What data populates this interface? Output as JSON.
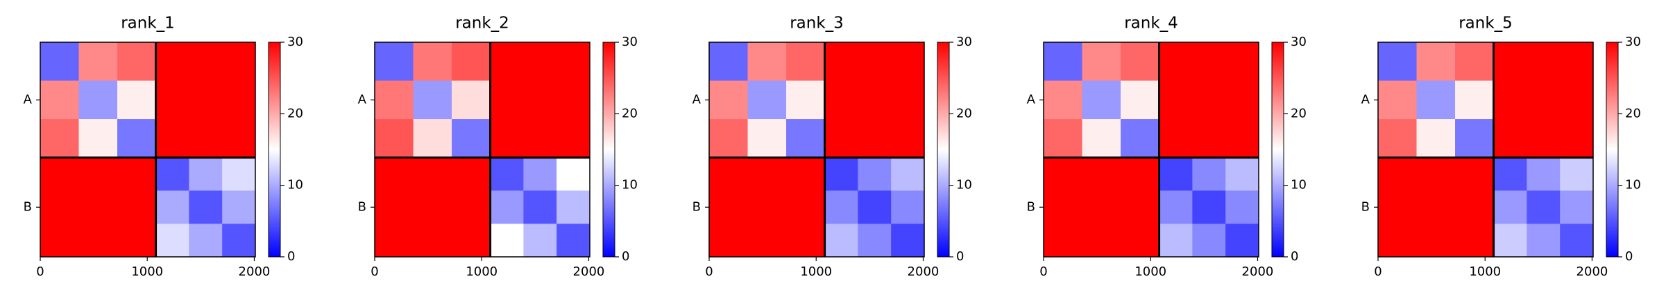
{
  "chart_data": [
    {
      "type": "heatmap",
      "title": "rank_1",
      "bins": [
        0,
        360,
        720,
        1080,
        1390,
        1700,
        2010
      ],
      "xlim": [
        0,
        2010
      ],
      "ylim": [
        2010,
        0
      ],
      "xticks": [
        0,
        1000,
        2000
      ],
      "yticks": [
        {
          "value": 540,
          "label": "A"
        },
        {
          "value": 1545,
          "label": "B"
        }
      ],
      "chain_breaks": [
        1080
      ],
      "clim": [
        0,
        30
      ],
      "cticks": [
        0,
        10,
        20,
        30
      ],
      "cmap": [
        "#0000ff",
        "#ffffff",
        "#ff0000"
      ],
      "values": [
        [
          6,
          22,
          24,
          30,
          30,
          30
        ],
        [
          22,
          9,
          16,
          30,
          30,
          30
        ],
        [
          24,
          16,
          7,
          30,
          30,
          30
        ],
        [
          30,
          30,
          30,
          5,
          10,
          13
        ],
        [
          30,
          30,
          30,
          10,
          5,
          10
        ],
        [
          30,
          30,
          30,
          13,
          10,
          5
        ]
      ]
    },
    {
      "type": "heatmap",
      "title": "rank_2",
      "bins": [
        0,
        360,
        720,
        1080,
        1390,
        1700,
        2010
      ],
      "xlim": [
        0,
        2010
      ],
      "ylim": [
        2010,
        0
      ],
      "xticks": [
        0,
        1000,
        2000
      ],
      "yticks": [
        {
          "value": 540,
          "label": "A"
        },
        {
          "value": 1545,
          "label": "B"
        }
      ],
      "chain_breaks": [
        1080
      ],
      "clim": [
        0,
        30
      ],
      "cticks": [
        0,
        10,
        20,
        30
      ],
      "cmap": [
        "#0000ff",
        "#ffffff",
        "#ff0000"
      ],
      "values": [
        [
          6,
          23,
          25,
          30,
          30,
          30
        ],
        [
          23,
          9,
          17,
          30,
          30,
          30
        ],
        [
          25,
          17,
          7,
          30,
          30,
          30
        ],
        [
          30,
          30,
          30,
          5,
          9,
          15
        ],
        [
          30,
          30,
          30,
          9,
          5,
          11
        ],
        [
          30,
          30,
          30,
          15,
          11,
          5
        ]
      ]
    },
    {
      "type": "heatmap",
      "title": "rank_3",
      "bins": [
        0,
        360,
        720,
        1080,
        1390,
        1700,
        2010
      ],
      "xlim": [
        0,
        2010
      ],
      "ylim": [
        2010,
        0
      ],
      "xticks": [
        0,
        1000,
        2000
      ],
      "yticks": [
        {
          "value": 540,
          "label": "A"
        },
        {
          "value": 1545,
          "label": "B"
        }
      ],
      "chain_breaks": [
        1080
      ],
      "clim": [
        0,
        30
      ],
      "cticks": [
        0,
        10,
        20,
        30
      ],
      "cmap": [
        "#0000ff",
        "#ffffff",
        "#ff0000"
      ],
      "values": [
        [
          6,
          22,
          24,
          30,
          30,
          30
        ],
        [
          22,
          9,
          16,
          30,
          30,
          30
        ],
        [
          24,
          16,
          7,
          30,
          30,
          30
        ],
        [
          30,
          30,
          30,
          4,
          8,
          11
        ],
        [
          30,
          30,
          30,
          8,
          4,
          8
        ],
        [
          30,
          30,
          30,
          11,
          8,
          4
        ]
      ]
    },
    {
      "type": "heatmap",
      "title": "rank_4",
      "bins": [
        0,
        360,
        720,
        1080,
        1390,
        1700,
        2010
      ],
      "xlim": [
        0,
        2010
      ],
      "ylim": [
        2010,
        0
      ],
      "xticks": [
        0,
        1000,
        2000
      ],
      "yticks": [
        {
          "value": 540,
          "label": "A"
        },
        {
          "value": 1545,
          "label": "B"
        }
      ],
      "chain_breaks": [
        1080
      ],
      "clim": [
        0,
        30
      ],
      "cticks": [
        0,
        10,
        20,
        30
      ],
      "cmap": [
        "#0000ff",
        "#ffffff",
        "#ff0000"
      ],
      "values": [
        [
          6,
          22,
          24,
          30,
          30,
          30
        ],
        [
          22,
          9,
          16,
          30,
          30,
          30
        ],
        [
          24,
          16,
          7,
          30,
          30,
          30
        ],
        [
          30,
          30,
          30,
          4,
          8,
          11
        ],
        [
          30,
          30,
          30,
          8,
          4,
          8
        ],
        [
          30,
          30,
          30,
          11,
          8,
          4
        ]
      ]
    },
    {
      "type": "heatmap",
      "title": "rank_5",
      "bins": [
        0,
        360,
        720,
        1080,
        1390,
        1700,
        2010
      ],
      "xlim": [
        0,
        2010
      ],
      "ylim": [
        2010,
        0
      ],
      "xticks": [
        0,
        1000,
        2000
      ],
      "yticks": [
        {
          "value": 540,
          "label": "A"
        },
        {
          "value": 1545,
          "label": "B"
        }
      ],
      "chain_breaks": [
        1080
      ],
      "clim": [
        0,
        30
      ],
      "cticks": [
        0,
        10,
        20,
        30
      ],
      "cmap": [
        "#0000ff",
        "#ffffff",
        "#ff0000"
      ],
      "values": [
        [
          6,
          22,
          24,
          30,
          30,
          30
        ],
        [
          22,
          9,
          16,
          30,
          30,
          30
        ],
        [
          24,
          16,
          7,
          30,
          30,
          30
        ],
        [
          30,
          30,
          30,
          5,
          9,
          12
        ],
        [
          30,
          30,
          30,
          9,
          5,
          9
        ],
        [
          30,
          30,
          30,
          12,
          9,
          5
        ]
      ]
    }
  ]
}
